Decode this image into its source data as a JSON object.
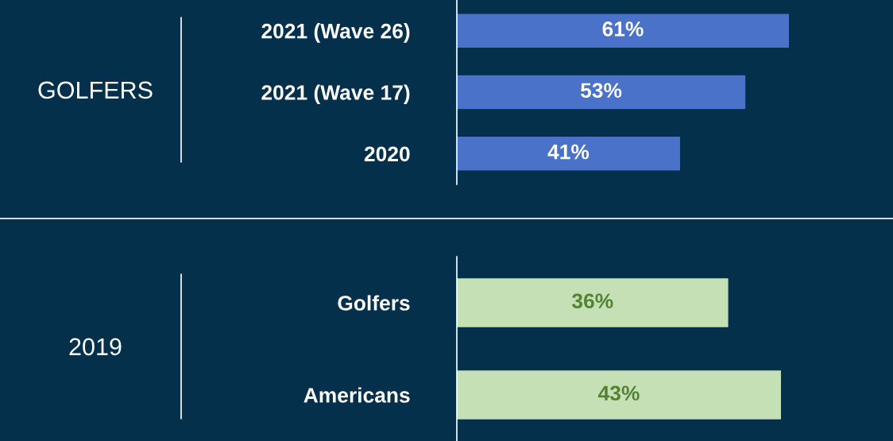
{
  "chart_data": [
    {
      "type": "bar",
      "orientation": "horizontal",
      "ylabel": "GOLFERS",
      "categories": [
        "2021 (Wave 26)",
        "2021 (Wave 17)",
        "2020"
      ],
      "values": [
        61,
        53,
        41
      ],
      "value_labels": [
        "61%",
        "53%",
        "41%"
      ],
      "color": "#4a72c8",
      "tick_labels": "y",
      "grid": false,
      "legend": false
    },
    {
      "type": "bar",
      "orientation": "horizontal",
      "ylabel": "2019",
      "categories": [
        "Golfers",
        "Americans"
      ],
      "values": [
        36,
        43
      ],
      "value_labels": [
        "36%",
        "43%"
      ],
      "color": "#c5e0b4",
      "tick_labels": "y",
      "grid": false,
      "legend": false
    }
  ]
}
